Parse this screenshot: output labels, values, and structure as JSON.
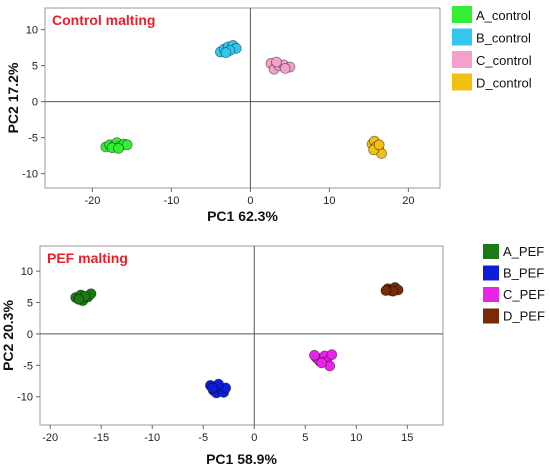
{
  "chart_data": [
    {
      "type": "scatter",
      "title": "Control malting",
      "title_color": "#e8202a",
      "xlabel": "PC1 62.3%",
      "ylabel": "PC2 17.2%",
      "xlim": [
        -26,
        24
      ],
      "ylim": [
        -12,
        13
      ],
      "xticks": [
        -20,
        -10,
        0,
        10,
        20
      ],
      "yticks": [
        -10,
        -5,
        0,
        5,
        10
      ],
      "grid": false,
      "legend_position": "right",
      "series": [
        {
          "name": "A_control",
          "color": "#33ee33",
          "points": [
            [
              -18.3,
              -6.3
            ],
            [
              -17.8,
              -6.0
            ],
            [
              -17.2,
              -6.1
            ],
            [
              -16.9,
              -5.7
            ],
            [
              -16.5,
              -6.2
            ],
            [
              -16.0,
              -5.9
            ],
            [
              -15.6,
              -6.0
            ],
            [
              -17.5,
              -6.4
            ],
            [
              -16.7,
              -6.5
            ]
          ]
        },
        {
          "name": "B_control",
          "color": "#33c7f0",
          "points": [
            [
              -3.8,
              6.9
            ],
            [
              -3.3,
              7.3
            ],
            [
              -2.8,
              7.6
            ],
            [
              -2.2,
              7.8
            ],
            [
              -1.8,
              7.4
            ],
            [
              -2.6,
              7.1
            ],
            [
              -3.1,
              6.8
            ]
          ]
        },
        {
          "name": "C_control",
          "color": "#f5a0cb",
          "points": [
            [
              2.6,
              5.3
            ],
            [
              3.0,
              4.5
            ],
            [
              3.6,
              5.0
            ],
            [
              4.2,
              5.1
            ],
            [
              5.0,
              4.8
            ],
            [
              3.3,
              5.5
            ],
            [
              4.4,
              4.6
            ]
          ]
        },
        {
          "name": "D_control",
          "color": "#f2c012",
          "points": [
            [
              15.4,
              -5.9
            ],
            [
              15.7,
              -5.5
            ],
            [
              15.9,
              -6.3
            ],
            [
              16.2,
              -6.5
            ],
            [
              16.6,
              -7.2
            ],
            [
              15.6,
              -6.7
            ],
            [
              16.3,
              -6.0
            ]
          ]
        }
      ]
    },
    {
      "type": "scatter",
      "title": "PEF malting",
      "title_color": "#e8202a",
      "xlabel": "PC1 58.9%",
      "ylabel": "PC2 20.3%",
      "xlim": [
        -21,
        18.5
      ],
      "ylim": [
        -14.5,
        14
      ],
      "xticks": [
        -20,
        -15,
        -10,
        -5,
        0,
        5,
        10,
        15
      ],
      "yticks": [
        -10,
        -5,
        0,
        5,
        10
      ],
      "grid": false,
      "legend_position": "right",
      "series": [
        {
          "name": "A_PEF",
          "color": "#1a7a14",
          "points": [
            [
              -17.5,
              5.8
            ],
            [
              -17.0,
              6.2
            ],
            [
              -16.8,
              5.3
            ],
            [
              -16.3,
              5.9
            ],
            [
              -16.0,
              6.4
            ],
            [
              -16.6,
              6.0
            ],
            [
              -17.2,
              5.5
            ]
          ]
        },
        {
          "name": "B_PEF",
          "color": "#0d1fd6",
          "points": [
            [
              -4.3,
              -8.2
            ],
            [
              -4.0,
              -9.0
            ],
            [
              -3.7,
              -9.4
            ],
            [
              -3.3,
              -8.8
            ],
            [
              -3.0,
              -9.3
            ],
            [
              -2.8,
              -8.6
            ],
            [
              -3.5,
              -8.0
            ],
            [
              -4.1,
              -8.6
            ]
          ]
        },
        {
          "name": "C_PEF",
          "color": "#ea22ea",
          "points": [
            [
              6.1,
              -3.8
            ],
            [
              6.4,
              -4.3
            ],
            [
              6.9,
              -3.5
            ],
            [
              7.1,
              -4.4
            ],
            [
              7.6,
              -3.3
            ],
            [
              7.4,
              -5.1
            ],
            [
              6.6,
              -4.6
            ],
            [
              5.9,
              -3.4
            ]
          ]
        },
        {
          "name": "D_PEF",
          "color": "#7a2a06",
          "points": [
            [
              13.1,
              7.2
            ],
            [
              13.4,
              6.9
            ],
            [
              13.8,
              7.4
            ],
            [
              14.1,
              7.0
            ],
            [
              13.6,
              6.8
            ],
            [
              12.9,
              6.9
            ]
          ]
        }
      ]
    }
  ]
}
